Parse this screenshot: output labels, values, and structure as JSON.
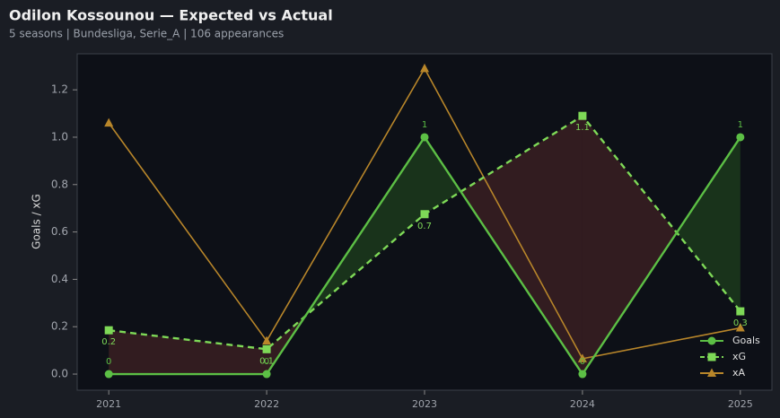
{
  "chart_data": {
    "type": "line",
    "title": "Odilon Kossounou — Expected vs Actual",
    "subtitle": "5 seasons | Bundesliga, Serie_A | 106 appearances",
    "y_label": "Goals / xG",
    "x": [
      2021,
      2022,
      2023,
      2024,
      2025
    ],
    "xlim": [
      2020.8,
      2025.2
    ],
    "xticks": [
      2021,
      2022,
      2023,
      2024,
      2025
    ],
    "ylim": [
      -0.068,
      1.352
    ],
    "yticks": [
      {
        "value": 0,
        "label": "0.0"
      },
      {
        "value": 0.2,
        "label": "0.2"
      },
      {
        "value": 0.4,
        "label": "0.4"
      },
      {
        "value": 0.6,
        "label": "0.6"
      },
      {
        "value": 0.8,
        "label": "0.8"
      },
      {
        "value": 1.0,
        "label": "1.0"
      },
      {
        "value": 1.2,
        "label": "1.2"
      }
    ],
    "legend": "lower right",
    "fill_colors": {
      "above": "#1c3a1c",
      "below": "#3a1f22"
    },
    "series": [
      {
        "name": "Goals",
        "color": "#5cbf45",
        "marker": "circle",
        "dash": false,
        "values": [
          0,
          0,
          1,
          0,
          1
        ]
      },
      {
        "name": "xG",
        "color": "#7ed957",
        "marker": "square",
        "dash": true,
        "values": [
          0.185,
          0.105,
          0.675,
          1.09,
          0.265
        ],
        "value_labels": [
          "0.2",
          "0.1",
          "0.7",
          "1.1",
          "0.3"
        ]
      },
      {
        "name": "xA",
        "color": "#b8862a",
        "marker": "triangle",
        "dash": false,
        "values": [
          1.06,
          0.14,
          1.29,
          0.065,
          0.195
        ]
      }
    ]
  }
}
